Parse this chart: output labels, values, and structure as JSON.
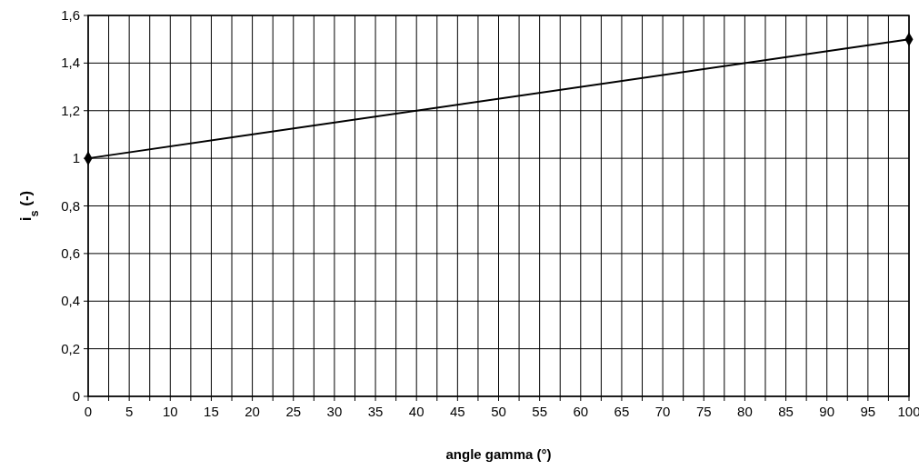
{
  "chart_data": {
    "type": "line",
    "xlabel": "angle gamma (°)",
    "ylabel": "i$_{s}$ (-)",
    "x": [
      0,
      100
    ],
    "series": [
      {
        "color": "#000000",
        "values": [
          1,
          1.5
        ]
      }
    ],
    "xlim": [
      0,
      100
    ],
    "xticks": [
      0,
      {
        "value": 2.5,
        "label": null
      },
      5,
      {
        "value": 7.5,
        "label": null
      },
      10,
      {
        "value": 12.5,
        "label": null
      },
      15,
      {
        "value": 17.5,
        "label": null
      },
      20,
      {
        "value": 22.5,
        "label": null
      },
      25,
      {
        "value": 27.5,
        "label": null
      },
      30,
      {
        "value": 32.5,
        "label": null
      },
      35,
      {
        "value": 37.5,
        "label": null
      },
      40,
      {
        "value": 42.5,
        "label": null
      },
      45,
      {
        "value": 47.5,
        "label": null
      },
      50,
      {
        "value": 52.5,
        "label": null
      },
      55,
      {
        "value": 57.5,
        "label": null
      },
      60,
      {
        "value": 62.5,
        "label": null
      },
      65,
      {
        "value": 67.5,
        "label": null
      },
      70,
      {
        "value": 72.5,
        "label": null
      },
      75,
      {
        "value": 77.5,
        "label": null
      },
      80,
      {
        "value": 82.5,
        "label": null
      },
      85,
      {
        "value": 87.5,
        "label": null
      },
      90,
      {
        "value": 92.5,
        "label": null
      },
      95,
      {
        "value": 97.5,
        "label": null
      },
      100
    ],
    "ylim": [
      0,
      1.6
    ],
    "yticks": [
      0,
      {
        "value": 0.2,
        "label": "0,2"
      },
      {
        "value": 0.4,
        "label": "0,4"
      },
      {
        "value": 0.6,
        "label": "0,6"
      },
      {
        "value": 0.8,
        "label": "0,8"
      },
      1,
      {
        "value": 1.2,
        "label": "1,2"
      },
      {
        "value": 1.4,
        "label": "1,4"
      },
      {
        "value": 1.6,
        "label": "1,6"
      }
    ],
    "grid": true,
    "marker": "diamond",
    "line_style": "solid"
  }
}
